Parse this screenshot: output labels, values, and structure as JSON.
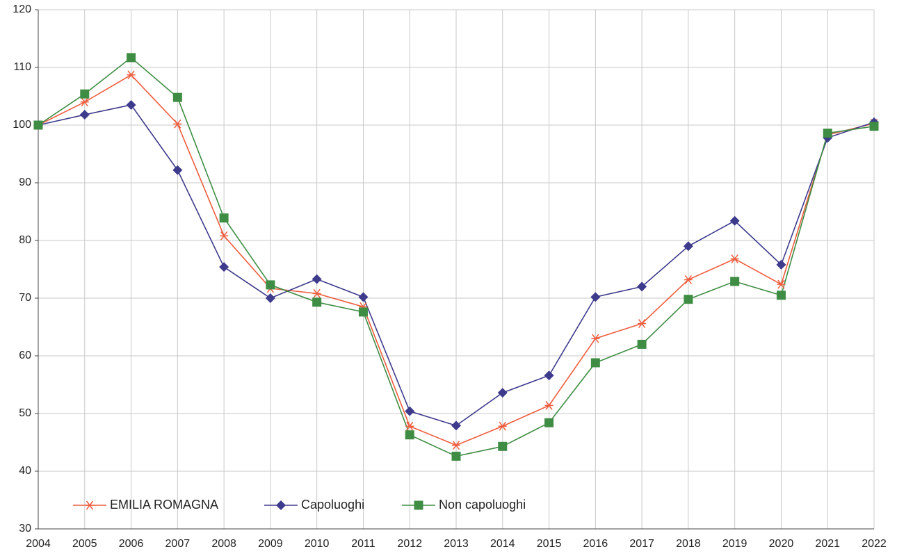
{
  "chart_data": {
    "type": "line",
    "categories": [
      "2004",
      "2005",
      "2006",
      "2007",
      "2008",
      "2009",
      "2010",
      "2011",
      "2012",
      "2013",
      "2014",
      "2015",
      "2016",
      "2017",
      "2018",
      "2019",
      "2020",
      "2021",
      "2022"
    ],
    "series": [
      {
        "name": "EMILIA ROMAGNA",
        "color": "#ef5b3b",
        "marker": "asterisk",
        "values": [
          100,
          104.0,
          108.7,
          100.2,
          80.8,
          71.7,
          70.8,
          68.5,
          47.8,
          44.5,
          47.8,
          51.4,
          63.0,
          65.6,
          73.2,
          76.8,
          72.4,
          98.3,
          100.3
        ]
      },
      {
        "name": "Capoluoghi",
        "color": "#3e3a8c",
        "marker": "diamond",
        "values": [
          100,
          101.8,
          103.5,
          92.2,
          75.4,
          70.0,
          73.3,
          70.2,
          50.4,
          47.9,
          53.6,
          56.6,
          70.2,
          72.0,
          79.0,
          83.4,
          75.8,
          97.8,
          100.5
        ]
      },
      {
        "name": "Non capoluoghi",
        "color": "#3f8d44",
        "marker": "square",
        "values": [
          100,
          105.4,
          111.7,
          104.8,
          83.9,
          72.3,
          69.3,
          67.6,
          46.3,
          42.6,
          44.3,
          48.4,
          58.8,
          62.0,
          69.8,
          72.9,
          70.5,
          98.6,
          99.8
        ]
      }
    ],
    "ylim": [
      30,
      120
    ],
    "yticks": [
      30,
      40,
      50,
      60,
      70,
      80,
      90,
      100,
      110,
      120
    ],
    "grid": true,
    "legend": "bottom-left"
  }
}
